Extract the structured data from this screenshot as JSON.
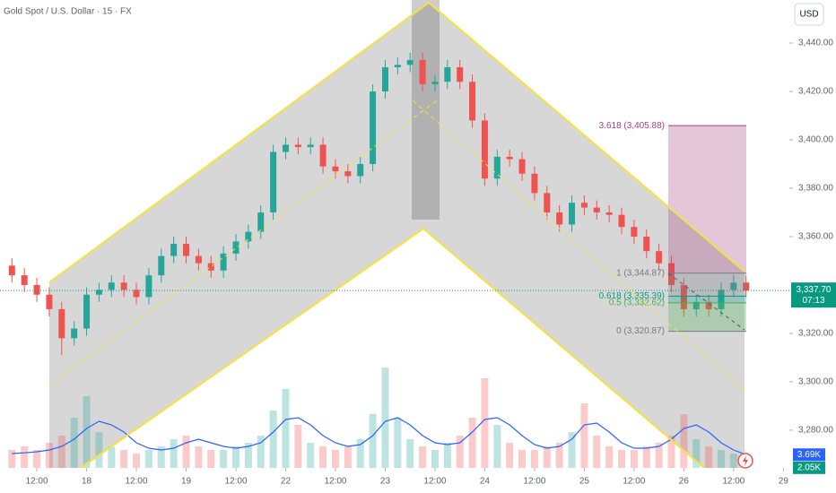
{
  "chart_data": {
    "type": "candlestick",
    "title": "Gold Spot / U.S. Dollar · 15 · FX",
    "currency": "USD",
    "xlim": [
      -0.74,
      15.12
    ],
    "xticks": [
      {
        "value": 0,
        "label": "12:00"
      },
      {
        "value": 1,
        "label": "18"
      },
      {
        "value": 2,
        "label": "12:00"
      },
      {
        "value": 3,
        "label": "19"
      },
      {
        "value": 4,
        "label": "12:00"
      },
      {
        "value": 5,
        "label": "22"
      },
      {
        "value": 6,
        "label": "12:00"
      },
      {
        "value": 7,
        "label": "23"
      },
      {
        "value": 8,
        "label": "12:00"
      },
      {
        "value": 9,
        "label": "24"
      },
      {
        "value": 10,
        "label": "12:00"
      },
      {
        "value": 11,
        "label": "25"
      },
      {
        "value": 12,
        "label": "12:00"
      },
      {
        "value": 13,
        "label": "26"
      },
      {
        "value": 14,
        "label": "12:00"
      },
      {
        "value": 15,
        "label": "29"
      }
    ],
    "ylim": [
      3264.4,
      3457.8
    ],
    "yticks": [
      {
        "value": 3440,
        "label": "3,440.00"
      },
      {
        "value": 3420,
        "label": "3,420.00"
      },
      {
        "value": 3400,
        "label": "3,400.00"
      },
      {
        "value": 3380,
        "label": "3,380.00"
      },
      {
        "value": 3360,
        "label": "3,360.00"
      },
      {
        "value": 3320,
        "label": "3,320.00"
      },
      {
        "value": 3300,
        "label": "3,300.00"
      },
      {
        "value": 3280,
        "label": "3,280.00"
      }
    ],
    "up_color": "#26a69a",
    "down_color": "#ef5350",
    "x": [
      -0.5,
      -0.25,
      0,
      0.25,
      0.5,
      0.75,
      1,
      1.25,
      1.5,
      1.75,
      2,
      2.25,
      2.5,
      2.75,
      3,
      3.25,
      3.5,
      3.75,
      4,
      4.25,
      4.5,
      4.75,
      5,
      5.25,
      5.5,
      5.75,
      6,
      6.25,
      6.5,
      6.75,
      7,
      7.25,
      7.5,
      7.75,
      8,
      8.25,
      8.5,
      8.75,
      9,
      9.25,
      9.5,
      9.75,
      10,
      10.25,
      10.5,
      10.75,
      11,
      11.25,
      11.5,
      11.75,
      12,
      12.25,
      12.5,
      12.75,
      13,
      13.25,
      13.5,
      13.75,
      14,
      14.25
    ],
    "open": [
      3348,
      3344,
      3340,
      3336,
      3330,
      3318,
      3322,
      3336,
      3338,
      3341,
      3338,
      3335,
      3344,
      3352,
      3357,
      3352,
      3349,
      3346,
      3353,
      3358,
      3362,
      3370,
      3395,
      3398,
      3397,
      3398,
      3389,
      3387,
      3385,
      3390,
      3420,
      3430,
      3431,
      3433,
      3423,
      3424,
      3430,
      3424,
      3408,
      3384,
      3393,
      3392,
      3386,
      3378,
      3370,
      3365,
      3374,
      3372,
      3370,
      3369,
      3364,
      3360,
      3354,
      3349,
      3340,
      3330,
      3333,
      3330,
      3338,
      3341
    ],
    "high": [
      3351,
      3347,
      3343,
      3339,
      3333,
      3325,
      3339,
      3341,
      3344,
      3344,
      3341,
      3347,
      3355,
      3360,
      3360,
      3355,
      3352,
      3356,
      3361,
      3365,
      3373,
      3398,
      3401,
      3401,
      3401,
      3401,
      3392,
      3390,
      3393,
      3423,
      3433,
      3434,
      3436,
      3436,
      3427,
      3433,
      3433,
      3427,
      3411,
      3396,
      3396,
      3395,
      3389,
      3381,
      3373,
      3377,
      3377,
      3375,
      3373,
      3372,
      3367,
      3363,
      3357,
      3352,
      3343,
      3336,
      3336,
      3341,
      3344,
      3344
    ],
    "low": [
      3341,
      3337,
      3333,
      3327,
      3311,
      3315,
      3319,
      3333,
      3335,
      3335,
      3332,
      3332,
      3341,
      3349,
      3349,
      3346,
      3343,
      3343,
      3350,
      3355,
      3359,
      3367,
      3392,
      3394,
      3394,
      3386,
      3384,
      3382,
      3382,
      3387,
      3417,
      3427,
      3428,
      3420,
      3420,
      3421,
      3421,
      3405,
      3381,
      3381,
      3389,
      3383,
      3375,
      3367,
      3362,
      3362,
      3369,
      3367,
      3366,
      3361,
      3357,
      3351,
      3346,
      3337,
      3327,
      3327,
      3327,
      3327,
      3335,
      3335
    ],
    "close": [
      3344,
      3340,
      3336,
      3330,
      3318,
      3322,
      3336,
      3338,
      3341,
      3338,
      3335,
      3344,
      3352,
      3357,
      3352,
      3349,
      3346,
      3353,
      3358,
      3362,
      3370,
      3395,
      3398,
      3397,
      3398,
      3389,
      3387,
      3385,
      3390,
      3420,
      3430,
      3431,
      3433,
      3423,
      3424,
      3430,
      3424,
      3408,
      3384,
      3393,
      3392,
      3386,
      3378,
      3370,
      3365,
      3374,
      3372,
      3370,
      3369,
      3364,
      3360,
      3354,
      3349,
      3340,
      3330,
      3333,
      3330,
      3338,
      3341,
      3337.7
    ],
    "last_price_label": "3,337.70",
    "countdown": "07:13",
    "price_color": "#089981",
    "vlim": [
      0,
      130.5
    ],
    "volume": {
      "color": "#089981",
      "values": [
        5,
        6,
        5,
        7,
        9,
        14,
        20,
        10,
        6,
        5,
        4,
        5,
        6,
        8,
        9,
        6,
        5,
        5,
        6,
        7,
        9,
        16,
        22,
        12,
        7,
        6,
        5,
        6,
        8,
        15,
        28,
        14,
        8,
        6,
        5,
        7,
        9,
        14,
        25,
        12,
        7,
        5,
        5,
        6,
        7,
        10,
        18,
        9,
        6,
        5,
        5,
        6,
        7,
        9,
        15,
        8,
        6,
        5,
        4,
        2.05
      ],
      "last_label": "2.05K"
    },
    "volume_ma": {
      "color": "#2962ff",
      "values": [
        4,
        4.2,
        4.5,
        5,
        6,
        8,
        11,
        13,
        12,
        10,
        7,
        5.5,
        5,
        5.5,
        7,
        8,
        7,
        6,
        5.5,
        6,
        7,
        10,
        13.5,
        14,
        12,
        9,
        7,
        6,
        6.5,
        9,
        13,
        14,
        12,
        9,
        7,
        6.5,
        7,
        10,
        13.5,
        14,
        12,
        9,
        6.5,
        5.5,
        6,
        8,
        12,
        12.5,
        10,
        7,
        5.5,
        5.5,
        6,
        8,
        11,
        12,
        10,
        7,
        5,
        3.69
      ],
      "last_label": "3.69K"
    },
    "fib_levels": [
      {
        "label": "3.618 (3,405.88)",
        "value": 3405.88,
        "color": "#a3427e"
      },
      {
        "label": "1 (3,344.87)",
        "value": 3344.87,
        "color": "#787b86"
      },
      {
        "label": "0.618 (3,335.39)",
        "value": 3335.39,
        "color": "#089981"
      },
      {
        "label": "0.5 (3,332.62)",
        "value": 3332.62,
        "color": "#4caf50"
      },
      {
        "label": "0 (3,320.87)",
        "value": 3320.87,
        "color": "#787b86"
      }
    ]
  }
}
